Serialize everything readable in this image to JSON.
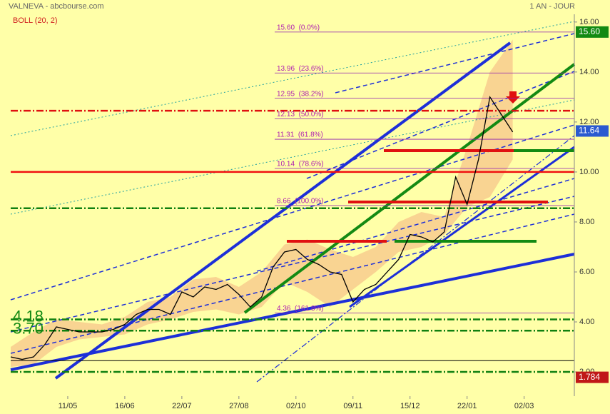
{
  "chart_data": {
    "type": "line",
    "title": "VALNEVA - abcbourse.com",
    "indicator": "BOLL (20, 2)",
    "period": "1 AN - JOUR",
    "xlim": [
      0,
      247
    ],
    "xticks": [
      {
        "value": 25,
        "label": "11/05"
      },
      {
        "value": 50,
        "label": "16/06"
      },
      {
        "value": 75,
        "label": "22/07"
      },
      {
        "value": 100,
        "label": "27/08"
      },
      {
        "value": 125,
        "label": "02/10"
      },
      {
        "value": 150,
        "label": "09/11"
      },
      {
        "value": 175,
        "label": "15/12"
      },
      {
        "value": 200,
        "label": "22/01"
      },
      {
        "value": 225,
        "label": "02/03"
      }
    ],
    "ylim": [
      1.03,
      16.31
    ],
    "yticks": [
      {
        "value": 2,
        "label": "2.00"
      },
      {
        "value": 4,
        "label": "4.00"
      },
      {
        "value": 6,
        "label": "6.00"
      },
      {
        "value": 8,
        "label": "8.00"
      },
      {
        "value": 10,
        "label": "10.00"
      },
      {
        "value": 12,
        "label": "12.00"
      },
      {
        "value": 14,
        "label": "14.00"
      },
      {
        "value": 16,
        "label": "16.00"
      }
    ],
    "x": [
      0,
      5,
      10,
      15,
      20,
      25,
      30,
      35,
      40,
      45,
      50,
      55,
      60,
      65,
      70,
      75,
      80,
      85,
      90,
      95,
      100,
      105,
      110,
      115,
      120,
      125,
      130,
      135,
      140,
      145,
      150,
      155,
      160,
      165,
      170,
      175,
      180,
      185,
      190,
      195,
      200,
      205,
      210,
      215,
      220
    ],
    "series": [
      {
        "color": "#000000",
        "values": [
          2.6,
          2.5,
          2.6,
          3.1,
          3.8,
          3.7,
          3.6,
          3.6,
          3.6,
          3.7,
          3.9,
          4.3,
          4.5,
          4.5,
          4.3,
          5.2,
          5.0,
          5.4,
          5.3,
          5.5,
          5.1,
          4.6,
          5.0,
          6.2,
          6.8,
          6.9,
          6.5,
          6.3,
          6.0,
          5.9,
          4.8,
          5.3,
          5.5,
          6.0,
          6.5,
          7.5,
          7.4,
          7.2,
          7.6,
          9.8,
          8.7,
          10.5,
          13.0,
          12.3,
          11.6
        ]
      }
    ],
    "band": {
      "color": "#f7c98c",
      "x": [
        0,
        10,
        20,
        30,
        40,
        50,
        60,
        70,
        80,
        90,
        100,
        110,
        120,
        130,
        140,
        150,
        160,
        170,
        180,
        190,
        200,
        210,
        220
      ],
      "upper": [
        3.0,
        3.6,
        4.1,
        4.0,
        3.9,
        4.2,
        4.8,
        5.0,
        5.7,
        5.8,
        5.4,
        6.0,
        7.1,
        7.3,
        6.9,
        6.6,
        7.0,
        8.0,
        8.4,
        8.2,
        11.0,
        14.0,
        15.3
      ],
      "lower": [
        2.2,
        2.3,
        3.0,
        3.3,
        3.4,
        3.5,
        3.9,
        4.1,
        4.4,
        4.5,
        4.3,
        4.6,
        5.6,
        5.2,
        4.6,
        5.3,
        6.0,
        6.8,
        7.0,
        7.5,
        8.6,
        9.0,
        10.5
      ]
    },
    "fibonacci": [
      {
        "label": "15.60  (0.0%)",
        "value": 15.6
      },
      {
        "label": "13.96  (23.6%)",
        "value": 13.96
      },
      {
        "label": "12.95  (38.2%)",
        "value": 12.95
      },
      {
        "label": "12.13  (50.0%)",
        "value": 12.13
      },
      {
        "label": "11.31  (61.8%)",
        "value": 11.31
      },
      {
        "label": "10.14  (78.6%)",
        "value": 10.14
      },
      {
        "label": "8.66  (100.0%)",
        "value": 8.66
      },
      {
        "label": "4.36  (161.8%)",
        "value": 4.36
      }
    ],
    "levels": [
      {
        "value": 12.45,
        "color": "#e01010",
        "style": "dashdot"
      },
      {
        "value": 10.0,
        "color": "#f01010",
        "style": "solid"
      },
      {
        "value": 8.55,
        "color": "#108010",
        "style": "dashdot"
      },
      {
        "value": 4.1,
        "color": "#108010",
        "style": "dashdot"
      },
      {
        "value": 3.65,
        "color": "#108010",
        "style": "dashdot"
      },
      {
        "value": 2.0,
        "color": "#108010",
        "style": "dashdot"
      },
      {
        "value": 2.45,
        "color": "#000000",
        "style": "solid"
      }
    ],
    "left_labels": [
      {
        "label": "4.18",
        "value": 4.18
      },
      {
        "label": "3.70",
        "value": 3.7
      }
    ],
    "price_badges": [
      {
        "label": "15.60",
        "value": 15.6,
        "color": "#128a12"
      },
      {
        "label": "11.64",
        "value": 11.64,
        "color": "#2a5ad0"
      },
      {
        "label": "1.784",
        "value": 1.784,
        "color": "#c01818"
      }
    ]
  }
}
